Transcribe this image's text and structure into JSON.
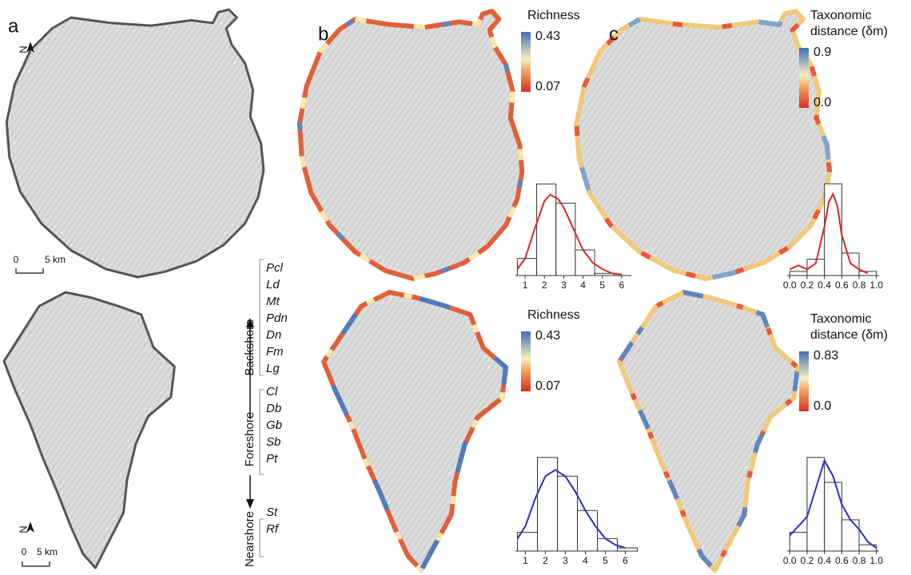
{
  "panel_labels": [
    "a",
    "b",
    "c"
  ],
  "north_label": "N",
  "scale_bar": {
    "start": "0",
    "end": "5 km"
  },
  "zones": [
    {
      "name": "Backshore",
      "codes": [
        "Pcl",
        "Ld",
        "Mt",
        "Pdn",
        "Dn",
        "Fm",
        "Lg"
      ]
    },
    {
      "name": "Foreshore",
      "codes": [
        "Cl",
        "Db",
        "Gb",
        "Sb",
        "Pt"
      ]
    },
    {
      "name": "Nearshore",
      "codes": [
        "St",
        "Rf"
      ]
    }
  ],
  "colorbars": [
    {
      "title": [
        "Richness"
      ],
      "ticks": [
        0.43,
        0.07
      ]
    },
    {
      "title": [
        "Taxonomic",
        "distance (δm)"
      ],
      "ticks": [
        0.9,
        {
          "value": 0,
          "label": "0.0"
        }
      ]
    },
    {
      "title": [
        "Richness"
      ],
      "ticks": [
        0.43,
        0.07
      ]
    },
    {
      "title": [
        "Taxonomic",
        "distance (δm)"
      ],
      "ticks": [
        0.83,
        {
          "value": 0,
          "label": "0.0"
        }
      ]
    }
  ],
  "chart_data": [
    {
      "type": "histogram",
      "bins": [
        0.6,
        1.6,
        2.6,
        3.6,
        4.6,
        5.6
      ],
      "values": [
        8,
        43,
        34,
        12,
        1
      ],
      "curve": {
        "x": [
          0.6,
          1,
          1.5,
          2,
          2.3,
          2.7,
          3,
          3.5,
          4,
          4.5,
          5,
          5.5,
          6
        ],
        "values": [
          3,
          8,
          22,
          35,
          38,
          36,
          32,
          22,
          12,
          6,
          3,
          1,
          0.5
        ]
      },
      "color": "#d62728",
      "xlim": [
        0.5,
        6.5
      ],
      "xticks": [
        1,
        2,
        3,
        4,
        5,
        6
      ],
      "ylim": [
        0,
        45
      ]
    },
    {
      "type": "histogram",
      "bins": [
        0,
        0.2,
        0.4,
        0.6,
        0.8,
        1
      ],
      "values": [
        2,
        8,
        45,
        11,
        2
      ],
      "curve": {
        "x": [
          0,
          0.1,
          0.2,
          0.3,
          0.4,
          0.45,
          0.5,
          0.55,
          0.6,
          0.7,
          0.8,
          0.9
        ],
        "values": [
          3,
          5,
          3,
          6,
          24,
          36,
          40,
          34,
          20,
          6,
          3,
          1
        ]
      },
      "color": "#d62728",
      "xlim": [
        -0.03,
        1.03
      ],
      "xticks": [
        {
          "value": 0,
          "label": "0.0"
        },
        0.2,
        0.4,
        0.6,
        0.8,
        {
          "value": 1,
          "label": "1.0"
        }
      ],
      "ylim": [
        0,
        47
      ]
    },
    {
      "type": "histogram",
      "bins": [
        0.6,
        1.6,
        2.6,
        3.6,
        4.6,
        5.6,
        6.6
      ],
      "values": [
        6,
        30,
        24,
        13,
        4,
        1
      ],
      "curve": {
        "x": [
          0.6,
          1,
          1.5,
          2,
          2.5,
          3,
          3.5,
          4,
          4.5,
          5,
          5.5,
          6
        ],
        "values": [
          4,
          8,
          17,
          24,
          26,
          24,
          19,
          13,
          8,
          4,
          2,
          1
        ]
      },
      "color": "#2c2cc8",
      "xlim": [
        0.5,
        6.5
      ],
      "xticks": [
        1,
        2,
        3,
        4,
        5,
        6
      ],
      "ylim": [
        0,
        32
      ]
    },
    {
      "type": "histogram",
      "bins": [
        0,
        0.2,
        0.4,
        0.6,
        0.8,
        1
      ],
      "values": [
        6,
        30,
        22,
        10,
        2
      ],
      "curve": {
        "x": [
          0,
          0.1,
          0.2,
          0.3,
          0.4,
          0.5,
          0.6,
          0.7,
          0.8,
          0.9,
          1
        ],
        "values": [
          5,
          8,
          11,
          20,
          29,
          24,
          15,
          10,
          7,
          3,
          1
        ]
      },
      "color": "#2c2cc8",
      "xlim": [
        -0.03,
        1.03
      ],
      "xticks": [
        {
          "value": 0,
          "label": "0.0"
        },
        0.2,
        0.4,
        0.6,
        0.8,
        {
          "value": 1,
          "label": "1.0"
        }
      ],
      "ylim": [
        0,
        32
      ]
    }
  ]
}
